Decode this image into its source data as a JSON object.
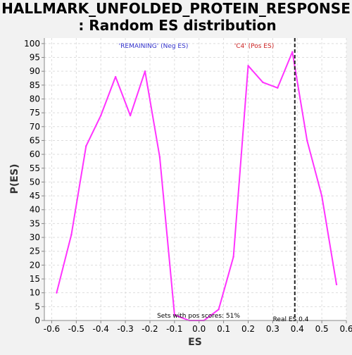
{
  "chart_data": {
    "type": "line",
    "title_line1": "HALLMARK_UNFOLDED_PROTEIN_RESPONSE",
    "title_line2": ": Random ES distribution",
    "xlabel": "ES",
    "ylabel": "P(ES)",
    "xlim": [
      -0.63,
      0.6
    ],
    "ylim": [
      0,
      102
    ],
    "x_ticks": [
      -0.6,
      -0.5,
      -0.4,
      -0.3,
      -0.2,
      -0.1,
      0.0,
      0.1,
      0.2,
      0.3,
      0.4,
      0.5,
      0.6
    ],
    "x_tick_labels": [
      "-0.6",
      "-0.5",
      "-0.4",
      "-0.3",
      "-0.2",
      "-0.1",
      "0.0",
      "0.1",
      "0.2",
      "0.3",
      "0.4",
      "0.5",
      "0.6"
    ],
    "y_ticks": [
      0,
      5,
      10,
      15,
      20,
      25,
      30,
      35,
      40,
      45,
      50,
      55,
      60,
      65,
      70,
      75,
      80,
      85,
      90,
      95,
      100
    ],
    "y_tick_labels": [
      "0",
      "5",
      "10",
      "15",
      "20",
      "25",
      "30",
      "35",
      "40",
      "45",
      "50",
      "55",
      "60",
      "65",
      "70",
      "75",
      "80",
      "85",
      "90",
      "95",
      "100"
    ],
    "grid": true,
    "series": [
      {
        "color": "#ff33ff",
        "x": [
          -0.58,
          -0.52,
          -0.46,
          -0.4,
          -0.34,
          -0.28,
          -0.22,
          -0.16,
          -0.1,
          -0.04,
          0.02,
          0.08,
          0.14,
          0.2,
          0.26,
          0.32,
          0.38,
          0.44,
          0.5,
          0.56
        ],
        "y": [
          10,
          31,
          63,
          74,
          88,
          74,
          90,
          59,
          2,
          0,
          0,
          4,
          23,
          92,
          86,
          84,
          97,
          65,
          45,
          13
        ]
      }
    ],
    "real_es": 0.39,
    "annotations": {
      "neg": {
        "text": "'REMAINING' (Neg ES)",
        "color": "#3333cc"
      },
      "pos": {
        "text": "'C4' (Pos ES)",
        "color": "#cc2222"
      },
      "sets_pos": "Sets with pos scores: 51%",
      "real_es_label": "Real ES 0.4"
    },
    "colors": {
      "background": "#f2f2f2",
      "plot_background": "#ffffff",
      "grid": "#dddddd"
    }
  }
}
